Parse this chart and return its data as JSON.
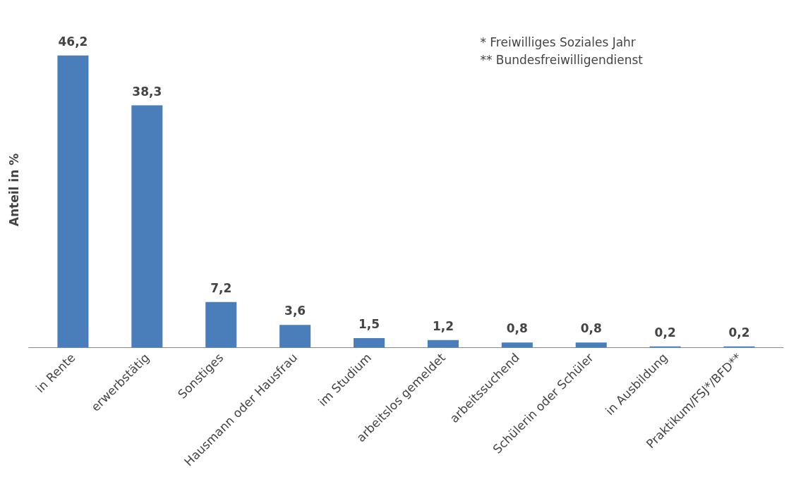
{
  "chart_data": {
    "type": "bar",
    "ylabel": "Anteil in %",
    "categories": [
      "in Rente",
      "erwerbstätig",
      "Sonstiges",
      "Hausmann oder Hausfrau",
      "im Studium",
      "arbeitslos gemeldet",
      "arbeitssuchend",
      "Schülerin oder Schüler",
      "in Ausbildung",
      "Praktikum/FSJ*/BFD**"
    ],
    "values": [
      46.2,
      38.3,
      7.2,
      3.6,
      1.5,
      1.2,
      0.8,
      0.8,
      0.2,
      0.2
    ],
    "value_labels": [
      "46,2",
      "38,3",
      "7,2",
      "3,6",
      "1,5",
      "1,2",
      "0,8",
      "0,8",
      "0,2",
      "0,2"
    ],
    "color": "#4a7ebb",
    "grid": false,
    "tick_labels": "x",
    "annotations": [
      "* Freiwilliges Soziales Jahr",
      "** Bundesfreiwilligendienst"
    ]
  }
}
